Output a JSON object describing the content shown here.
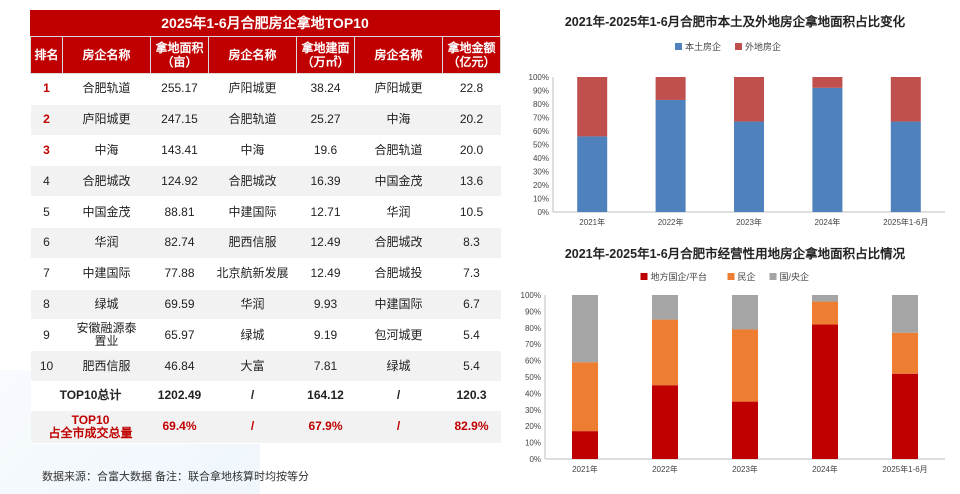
{
  "table": {
    "title": "2025年1-6月合肥房企拿地TOP10",
    "headers": [
      "排名",
      "房企名称",
      "拿地面积\n（亩）",
      "房企名称",
      "拿地建面\n（万㎡）",
      "房企名称",
      "拿地金额\n（亿元）"
    ],
    "rows": [
      [
        "1",
        "合肥轨道",
        "255.17",
        "庐阳城更",
        "38.24",
        "庐阳城更",
        "22.8"
      ],
      [
        "2",
        "庐阳城更",
        "247.15",
        "合肥轨道",
        "25.27",
        "中海",
        "20.2"
      ],
      [
        "3",
        "中海",
        "143.41",
        "中海",
        "19.6",
        "合肥轨道",
        "20.0"
      ],
      [
        "4",
        "合肥城改",
        "124.92",
        "合肥城改",
        "16.39",
        "中国金茂",
        "13.6"
      ],
      [
        "5",
        "中国金茂",
        "88.81",
        "中建国际",
        "12.71",
        "华润",
        "10.5"
      ],
      [
        "6",
        "华润",
        "82.74",
        "肥西信服",
        "12.49",
        "合肥城改",
        "8.3"
      ],
      [
        "7",
        "中建国际",
        "77.88",
        "北京航新发展",
        "12.49",
        "合肥城投",
        "7.3"
      ],
      [
        "8",
        "绿城",
        "69.59",
        "华润",
        "9.93",
        "中建国际",
        "6.7"
      ],
      [
        "9",
        "安徽融源泰\n置业",
        "65.97",
        "绿城",
        "9.19",
        "包河城更",
        "5.4"
      ],
      [
        "10",
        "肥西信服",
        "46.84",
        "大富",
        "7.81",
        "绿城",
        "5.4"
      ]
    ],
    "total_row": [
      "TOP10总计",
      "1202.49",
      "/",
      "164.12",
      "/",
      "120.3"
    ],
    "share_row": [
      "TOP10\n占全市成交总量",
      "69.4%",
      "/",
      "67.9%",
      "/",
      "82.9%"
    ]
  },
  "footnote": "数据来源：合富大数据    备注：联合拿地核算时均按等分",
  "chart_data": [
    {
      "type": "bar",
      "stacked": true,
      "title": "2021年-2025年1-6月合肥市本土及外地房企拿地面积占比变化",
      "categories": [
        "2021年",
        "2022年",
        "2023年",
        "2024年",
        "2025年1-6月"
      ],
      "series": [
        {
          "name": "本土房企",
          "color": "#4f81bd",
          "values": [
            56,
            83,
            67,
            92,
            67
          ]
        },
        {
          "name": "外地房企",
          "color": "#c0504d",
          "values": [
            44,
            17,
            33,
            8,
            33
          ]
        }
      ],
      "ylim": [
        0,
        100
      ],
      "yticks": [
        "0%",
        "10%",
        "20%",
        "30%",
        "40%",
        "50%",
        "60%",
        "70%",
        "80%",
        "90%",
        "100%"
      ],
      "legend": "top"
    },
    {
      "type": "bar",
      "stacked": true,
      "title": "2021年-2025年1-6月合肥市经营性用地房企拿地面积占比情况",
      "categories": [
        "2021年",
        "2022年",
        "2023年",
        "2024年",
        "2025年1-6月"
      ],
      "series": [
        {
          "name": "地方国企/平台",
          "color": "#c00000",
          "values": [
            17,
            45,
            35,
            82,
            52
          ]
        },
        {
          "name": "民企",
          "color": "#ed7d31",
          "values": [
            42,
            40,
            44,
            14,
            25
          ]
        },
        {
          "name": "国/央企",
          "color": "#a5a5a5",
          "values": [
            41,
            15,
            21,
            4,
            23
          ]
        }
      ],
      "ylim": [
        0,
        100
      ],
      "yticks": [
        "0%",
        "10%",
        "20%",
        "30%",
        "40%",
        "50%",
        "60%",
        "70%",
        "80%",
        "90%",
        "100%"
      ],
      "legend": "top"
    }
  ]
}
